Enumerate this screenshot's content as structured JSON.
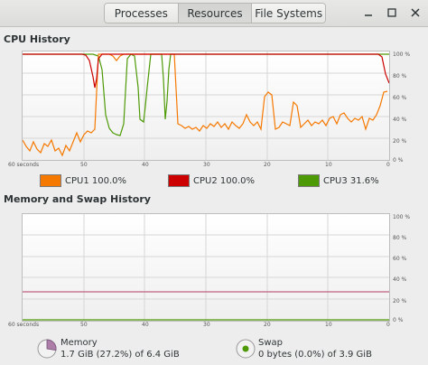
{
  "tabs": [
    {
      "label": "Processes",
      "active": false
    },
    {
      "label": "Resources",
      "active": true
    },
    {
      "label": "File Systems",
      "active": false
    }
  ],
  "window_controls": {
    "minimize": "minimize-icon",
    "maximize": "maximize-icon",
    "close": "close-icon"
  },
  "cpu": {
    "title": "CPU History",
    "time_labels": [
      "60 seconds",
      "50",
      "40",
      "30",
      "20",
      "10",
      "0"
    ],
    "pct_labels": [
      "100 %",
      "80 %",
      "60 %",
      "40 %",
      "20 %",
      "0 %"
    ],
    "legend": [
      {
        "label": "CPU1 100.0%",
        "color": "#f57900"
      },
      {
        "label": "CPU2 100.0%",
        "color": "#cc0000"
      },
      {
        "label": "CPU3 31.6%",
        "color": "#4e9a06"
      }
    ]
  },
  "memswap": {
    "title": "Memory and Swap History",
    "time_labels": [
      "60 seconds",
      "50",
      "40",
      "30",
      "20",
      "10",
      "0"
    ],
    "pct_labels": [
      "100 %",
      "80 %",
      "60 %",
      "40 %",
      "20 %",
      "0 %"
    ],
    "memory": {
      "label": "Memory",
      "value": "1.7 GiB (27.2%) of 6.4 GiB",
      "color": "#ad7fa8",
      "percent": 27.2
    },
    "swap": {
      "label": "Swap",
      "value": "0 bytes (0.0%) of 3.9 GiB",
      "color": "#4e9a06",
      "percent": 0
    }
  }
}
